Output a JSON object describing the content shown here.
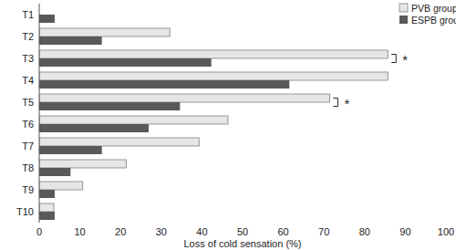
{
  "chart_data": {
    "type": "bar",
    "orientation": "horizontal",
    "x_label": "Loss of cold sensation (%)",
    "categories": [
      "T1",
      "T2",
      "T3",
      "T4",
      "T5",
      "T6",
      "T7",
      "T8",
      "T9",
      "T10"
    ],
    "series": [
      {
        "name": "PVB group",
        "color": "#e6e6e6",
        "values": [
          0,
          32.1,
          85.7,
          85.7,
          71.4,
          46.4,
          39.3,
          21.4,
          10.7,
          3.6
        ]
      },
      {
        "name": "ESPB group",
        "color": "#595959",
        "values": [
          3.8,
          15.4,
          42.3,
          61.5,
          34.6,
          26.9,
          15.4,
          7.7,
          3.8,
          3.8
        ]
      }
    ],
    "xlim": [
      0,
      100
    ],
    "xticks": [
      0,
      10,
      20,
      30,
      40,
      50,
      60,
      70,
      80,
      90,
      100
    ],
    "grid": false,
    "legend": "top-right",
    "annotations": [
      {
        "category": "T3",
        "text": "*"
      },
      {
        "category": "T5",
        "text": "*"
      }
    ]
  }
}
